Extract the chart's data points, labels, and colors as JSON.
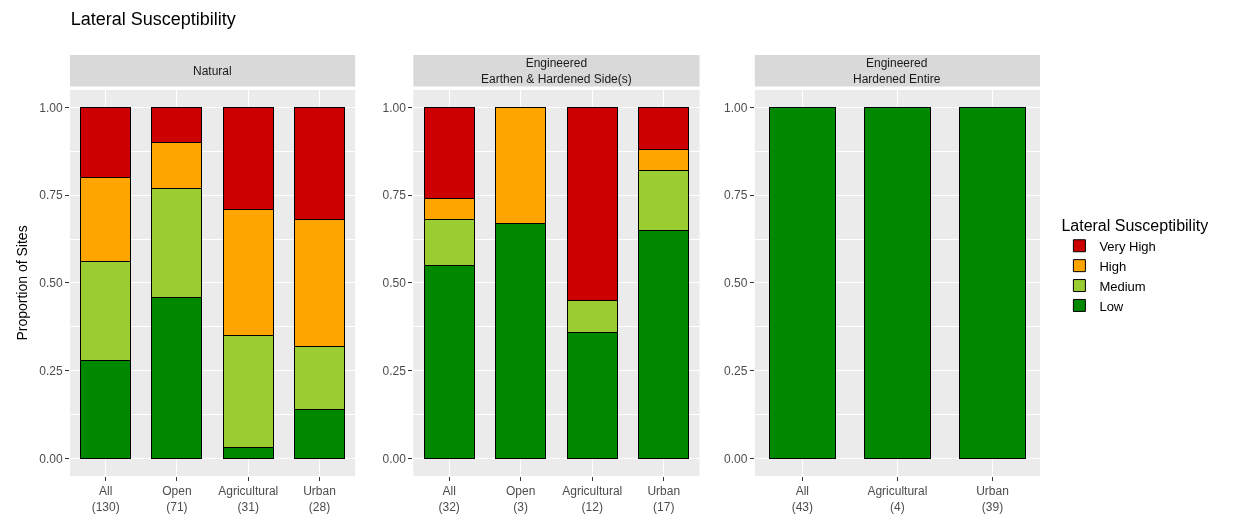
{
  "chart_data": [
    {
      "type": "bar",
      "stacked": true,
      "title": "Lateral Susceptibility",
      "subtitle": "Natural",
      "ylabel": "Proportion of Sites",
      "legend": "right",
      "legend_title": "Lateral Susceptibility",
      "grid": true,
      "categories": [
        "All\n(130)",
        "Open\n(71)",
        "Agricultural\n(31)",
        "Urban\n(28)"
      ],
      "ylim": [
        -0.05,
        1.05
      ],
      "yticks": [
        {
          "value": 0,
          "label": "0.00"
        },
        {
          "value": 0.25,
          "label": "0.25"
        },
        {
          "value": 0.5,
          "label": "0.50"
        },
        {
          "value": 0.75,
          "label": "0.75"
        },
        {
          "value": 1,
          "label": "1.00"
        }
      ],
      "series": [
        {
          "name": "Low",
          "color": "#008800",
          "values": [
            0.28,
            0.46,
            0.03,
            0.14
          ]
        },
        {
          "name": "Medium",
          "color": "#9acd32",
          "values": [
            0.28,
            0.31,
            0.32,
            0.18
          ]
        },
        {
          "name": "High",
          "color": "#ffa500",
          "values": [
            0.24,
            0.13,
            0.36,
            0.36
          ]
        },
        {
          "name": "Very High",
          "color": "#cc0000",
          "values": [
            0.2,
            0.1,
            0.29,
            0.32
          ]
        }
      ]
    },
    {
      "type": "bar",
      "stacked": true,
      "subtitle": "Engineered\nEarthen & Hardened Side(s)",
      "grid": true,
      "categories": [
        "All\n(32)",
        "Open\n(3)",
        "Agricultural\n(12)",
        "Urban\n(17)"
      ],
      "ylim": [
        -0.05,
        1.05
      ],
      "yticks": [
        {
          "value": 0,
          "label": "0.00"
        },
        {
          "value": 0.25,
          "label": "0.25"
        },
        {
          "value": 0.5,
          "label": "0.50"
        },
        {
          "value": 0.75,
          "label": "0.75"
        },
        {
          "value": 1,
          "label": "1.00"
        }
      ],
      "series": [
        {
          "color": "#008800",
          "values": [
            0.55,
            0.67,
            0.36,
            0.65
          ]
        },
        {
          "color": "#9acd32",
          "values": [
            0.13,
            null,
            0.09,
            0.17
          ]
        },
        {
          "color": "#ffa500",
          "values": [
            0.06,
            0.33,
            null,
            0.06
          ]
        },
        {
          "color": "#cc0000",
          "values": [
            0.26,
            null,
            0.55,
            0.12
          ]
        }
      ]
    },
    {
      "type": "bar",
      "stacked": true,
      "subtitle": "Engineered\nHardened Entire",
      "grid": true,
      "categories": [
        "All\n(43)",
        "Agricultural\n(4)",
        "Urban\n(39)"
      ],
      "ylim": [
        -0.05,
        1.05
      ],
      "yticks": [
        {
          "value": 0,
          "label": "0.00"
        },
        {
          "value": 0.25,
          "label": "0.25"
        },
        {
          "value": 0.5,
          "label": "0.50"
        },
        {
          "value": 0.75,
          "label": "0.75"
        },
        {
          "value": 1,
          "label": "1.00"
        }
      ],
      "series": [
        {
          "color": "#008800",
          "values": [
            1,
            1,
            1
          ]
        }
      ]
    }
  ]
}
